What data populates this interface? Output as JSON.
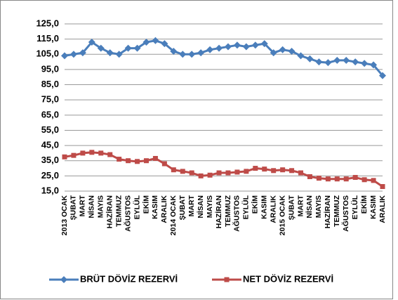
{
  "chart_data": {
    "type": "line",
    "categories": [
      "2013 OCAK",
      "ŞUBAT",
      "MART",
      "NİSAN",
      "MAYIS",
      "HAZİRAN",
      "TEMMUZ",
      "AĞUSTOS",
      "EYLÜL",
      "EKİM",
      "KASIM",
      "ARALIK",
      "2014 OCAK",
      "ŞUBAT",
      "MART",
      "NİSAN",
      "MAYIS",
      "HAZİRAN",
      "TEMMUZ",
      "AĞUSTOS",
      "EYLÜL",
      "EKİM",
      "KASIM",
      "ARALIK",
      "2015 OCAK",
      "ŞUBAT",
      "MART",
      "NİSAN",
      "MAYIS",
      "HAZİRAN",
      "TEMMUZ",
      "AĞUSTOS",
      "EYLÜL",
      "EKİM",
      "KASIM",
      "ARALIK"
    ],
    "series": [
      {
        "name": "BRÜT DÖVİZ REZERVİ",
        "color": "#4a7ebb",
        "marker": "diamond",
        "values": [
          104,
          105,
          106,
          113,
          109,
          106,
          105,
          109,
          109,
          113,
          114,
          112,
          107,
          105,
          105,
          106,
          108,
          109,
          110,
          111,
          110,
          111,
          112,
          106,
          108,
          107,
          104,
          102,
          100,
          99.5,
          101,
          101,
          100,
          99,
          98,
          91
        ]
      },
      {
        "name": "NET DÖVİZ REZERVİ",
        "color": "#be4b48",
        "marker": "square",
        "values": [
          37.5,
          38.5,
          40,
          40.5,
          40,
          39,
          36,
          35,
          34.5,
          35,
          36.5,
          33,
          29,
          28,
          27,
          25,
          25.5,
          27,
          27,
          27.5,
          28,
          30,
          29.5,
          28.5,
          29,
          28.5,
          27,
          24.5,
          23.5,
          23,
          23,
          23,
          24,
          22.5,
          22,
          18
        ]
      }
    ],
    "ylim": [
      15,
      125
    ],
    "yticks": [
      {
        "value": 15,
        "label": "15,0"
      },
      {
        "value": 25,
        "label": "25,0"
      },
      {
        "value": 35,
        "label": "35,0"
      },
      {
        "value": 45,
        "label": "45,0"
      },
      {
        "value": 55,
        "label": "55,0"
      },
      {
        "value": 65,
        "label": "65,0"
      },
      {
        "value": 75,
        "label": "75,0"
      },
      {
        "value": 85,
        "label": "85,0"
      },
      {
        "value": 95,
        "label": "95,0"
      },
      {
        "value": 105,
        "label": "105,0"
      },
      {
        "value": 115,
        "label": "115,0"
      },
      {
        "value": 125,
        "label": "125,0"
      }
    ],
    "grid": true,
    "legend": "bottom"
  }
}
